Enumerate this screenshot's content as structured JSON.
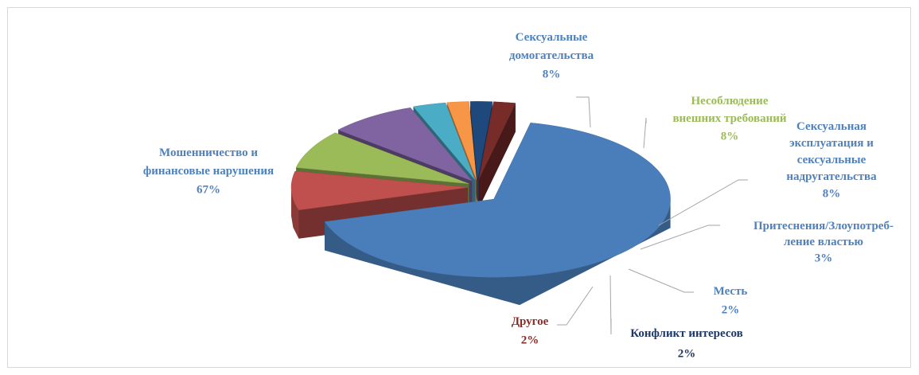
{
  "chart_data": {
    "type": "pie3d",
    "categories": [
      "Мошенничество и\nфинансовые нарушения",
      "Сексуальные\nдомогательства",
      "Несоблюдение\nвнешних  требований",
      "Сексуальная\nэксплуатация и\nсексуальные\nнадругательства",
      "Притеснения/Злоупотреб-\nление властью",
      "Месть",
      "Конфликт  интересов",
      "Другое"
    ],
    "values": [
      67,
      8,
      8,
      8,
      3,
      2,
      2,
      2
    ],
    "value_labels": [
      "67%",
      "8%",
      "8%",
      "8%",
      "3%",
      "2%",
      "2%",
      "2%"
    ],
    "colors": [
      "#4a7ebb",
      "#c0504d",
      "#9bbb59",
      "#8064a2",
      "#4bacc6",
      "#f79646",
      "#1f497d",
      "#772c2a"
    ],
    "label_colors": [
      "#4f81bd",
      "#4f81bd",
      "#9bbb59",
      "#4f81bd",
      "#4f81bd",
      "#4f81bd",
      "#1f3864",
      "#8b2a27"
    ]
  }
}
